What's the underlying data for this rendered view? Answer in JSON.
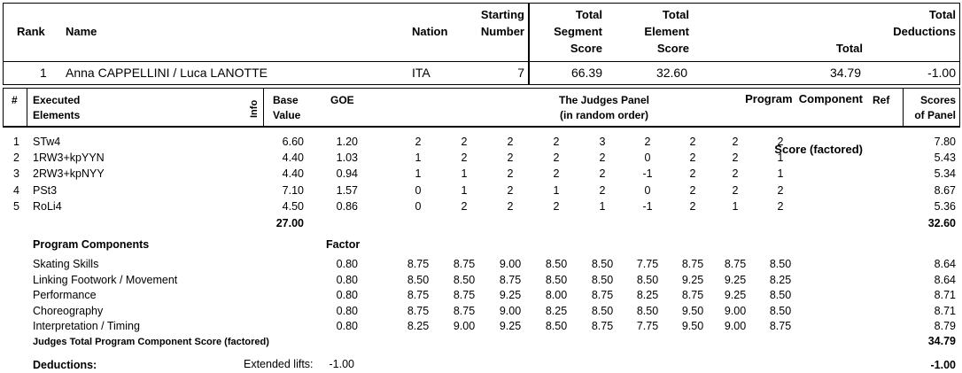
{
  "summary": {
    "headers": {
      "rank": "Rank",
      "name": "Name",
      "nation": "Nation",
      "starting_number": [
        "Starting",
        "Number"
      ],
      "tss": [
        "Total",
        "Segment",
        "Score"
      ],
      "tes": [
        "Total",
        "Element",
        "Score"
      ],
      "pcs": [
        "Total",
        "Program  Component",
        "Score (factored)"
      ],
      "ded": [
        "Total",
        "Deductions"
      ]
    },
    "row": {
      "rank": "1",
      "name": "Anna CAPPELLINI / Luca LANOTTE",
      "nation": "ITA",
      "starting_number": "7",
      "tss": "66.39",
      "tes": "32.60",
      "pcs": "34.79",
      "ded": "-1.00"
    }
  },
  "elements_table": {
    "headers": {
      "num": "#",
      "executed": [
        "Executed",
        "Elements"
      ],
      "info": "Info",
      "base": [
        "Base",
        "Value"
      ],
      "goe": "GOE",
      "panel": [
        "The Judges Panel",
        "(in random order)"
      ],
      "ref": "Ref",
      "scores": [
        "Scores",
        "of Panel"
      ]
    },
    "rows": [
      {
        "num": "1",
        "element": "STw4",
        "base": "6.60",
        "goe": "1.20",
        "judges": [
          "2",
          "2",
          "2",
          "2",
          "3",
          "2",
          "2",
          "2",
          "2"
        ],
        "score": "7.80"
      },
      {
        "num": "2",
        "element": "1RW3+kpYYN",
        "base": "4.40",
        "goe": "1.03",
        "judges": [
          "1",
          "2",
          "2",
          "2",
          "2",
          "0",
          "2",
          "2",
          "1"
        ],
        "score": "5.43"
      },
      {
        "num": "3",
        "element": "2RW3+kpNYY",
        "base": "4.40",
        "goe": "0.94",
        "judges": [
          "1",
          "1",
          "2",
          "2",
          "2",
          "-1",
          "2",
          "2",
          "1"
        ],
        "score": "5.34"
      },
      {
        "num": "4",
        "element": "PSt3",
        "base": "7.10",
        "goe": "1.57",
        "judges": [
          "0",
          "1",
          "2",
          "1",
          "2",
          "0",
          "2",
          "2",
          "2"
        ],
        "score": "8.67"
      },
      {
        "num": "5",
        "element": "RoLi4",
        "base": "4.50",
        "goe": "0.86",
        "judges": [
          "0",
          "2",
          "2",
          "2",
          "1",
          "-1",
          "2",
          "1",
          "2"
        ],
        "score": "5.36"
      }
    ],
    "base_total": "27.00",
    "score_total": "32.60"
  },
  "components": {
    "title": "Program Components",
    "factor_label": "Factor",
    "rows": [
      {
        "name": "Skating Skills",
        "factor": "0.80",
        "judges": [
          "8.75",
          "8.75",
          "9.00",
          "8.50",
          "8.50",
          "7.75",
          "8.75",
          "8.75",
          "8.50"
        ],
        "score": "8.64"
      },
      {
        "name": "Linking Footwork / Movement",
        "factor": "0.80",
        "judges": [
          "8.50",
          "8.50",
          "8.75",
          "8.50",
          "8.50",
          "8.50",
          "9.25",
          "9.25",
          "8.25"
        ],
        "score": "8.64"
      },
      {
        "name": "Performance",
        "factor": "0.80",
        "judges": [
          "8.75",
          "8.75",
          "9.25",
          "8.00",
          "8.75",
          "8.25",
          "8.75",
          "9.25",
          "8.50"
        ],
        "score": "8.71"
      },
      {
        "name": "Choreography",
        "factor": "0.80",
        "judges": [
          "8.75",
          "8.75",
          "9.00",
          "8.25",
          "8.50",
          "8.50",
          "9.50",
          "9.00",
          "8.50"
        ],
        "score": "8.71"
      },
      {
        "name": "Interpretation / Timing",
        "factor": "0.80",
        "judges": [
          "8.25",
          "9.00",
          "9.25",
          "8.50",
          "8.75",
          "7.75",
          "9.50",
          "9.00",
          "8.75"
        ],
        "score": "8.79"
      }
    ],
    "total_label": "Judges Total Program Component Score (factored)",
    "total": "34.79"
  },
  "deductions": {
    "label": "Deductions:",
    "item_label": "Extended lifts:",
    "item_value": "-1.00",
    "total": "-1.00"
  }
}
